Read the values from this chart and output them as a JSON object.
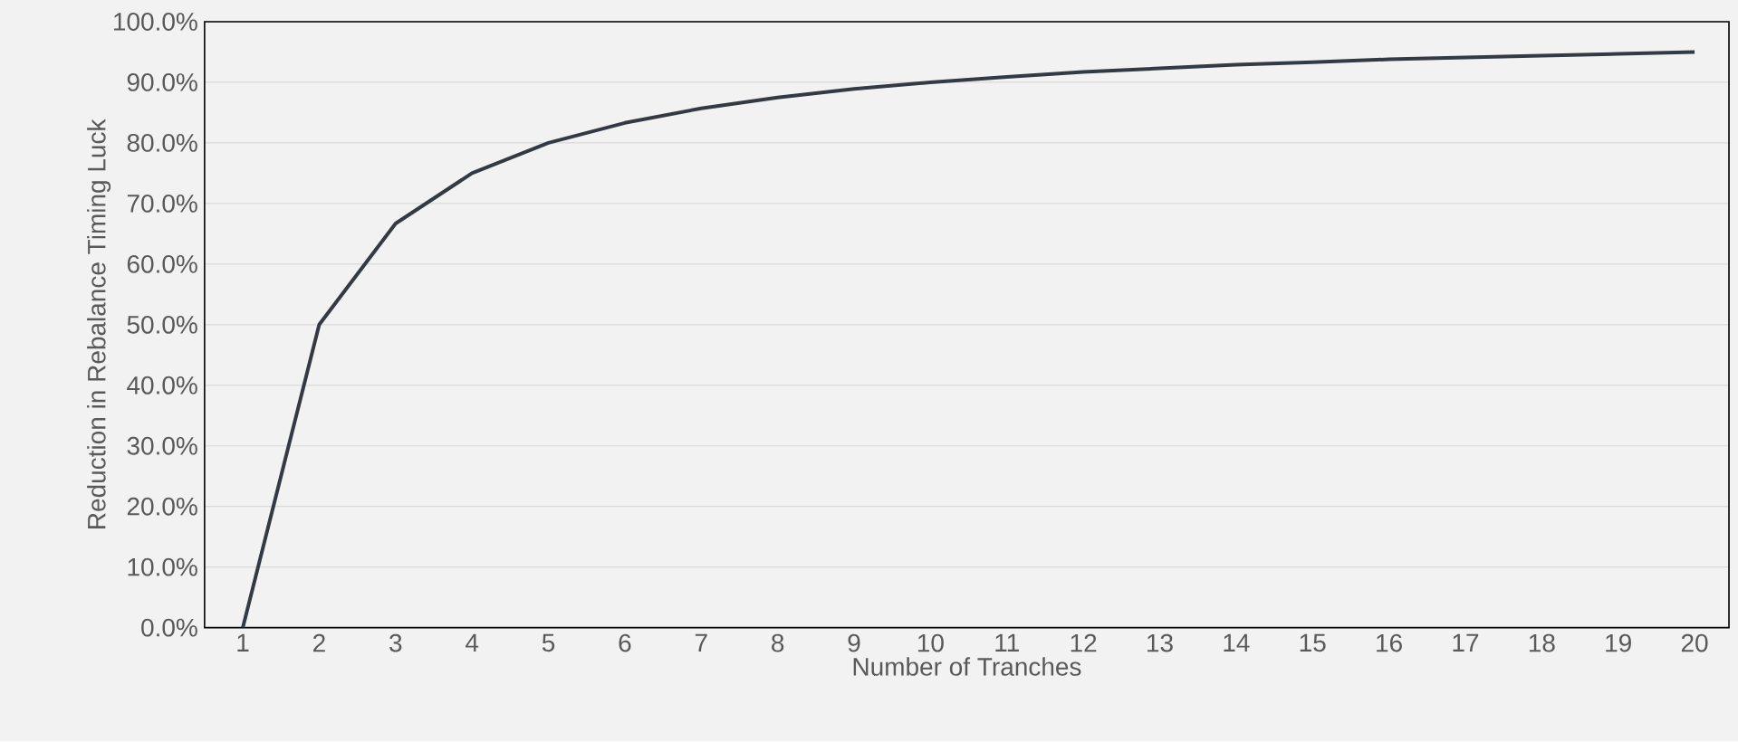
{
  "chart_data": {
    "type": "line",
    "xlabel": "Number of Tranches",
    "ylabel": "Reduction in Rebalance Timing Luck",
    "categories": [
      "1",
      "2",
      "3",
      "4",
      "5",
      "6",
      "7",
      "8",
      "9",
      "10",
      "11",
      "12",
      "13",
      "14",
      "15",
      "16",
      "17",
      "18",
      "19",
      "20"
    ],
    "series": [
      {
        "color": "#333a44",
        "values": [
          0,
          50.0,
          66.7,
          75.0,
          80.0,
          83.3,
          85.7,
          87.5,
          88.9,
          90.0,
          90.9,
          91.7,
          92.3,
          92.9,
          93.3,
          93.8,
          94.1,
          94.4,
          94.7,
          95.0
        ]
      }
    ],
    "ylim": [
      0,
      100
    ],
    "yticks": [
      {
        "value": 0,
        "label": "0.0%"
      },
      {
        "value": 10,
        "label": "10.0%"
      },
      {
        "value": 20,
        "label": "20.0%"
      },
      {
        "value": 30,
        "label": "30.0%"
      },
      {
        "value": 40,
        "label": "40.0%"
      },
      {
        "value": 50,
        "label": "50.0%"
      },
      {
        "value": 60,
        "label": "60.0%"
      },
      {
        "value": 70,
        "label": "70.0%"
      },
      {
        "value": 80,
        "label": "80.0%"
      },
      {
        "value": 90,
        "label": "90.0%"
      },
      {
        "value": 100,
        "label": "100.0%"
      }
    ],
    "grid": "y"
  }
}
